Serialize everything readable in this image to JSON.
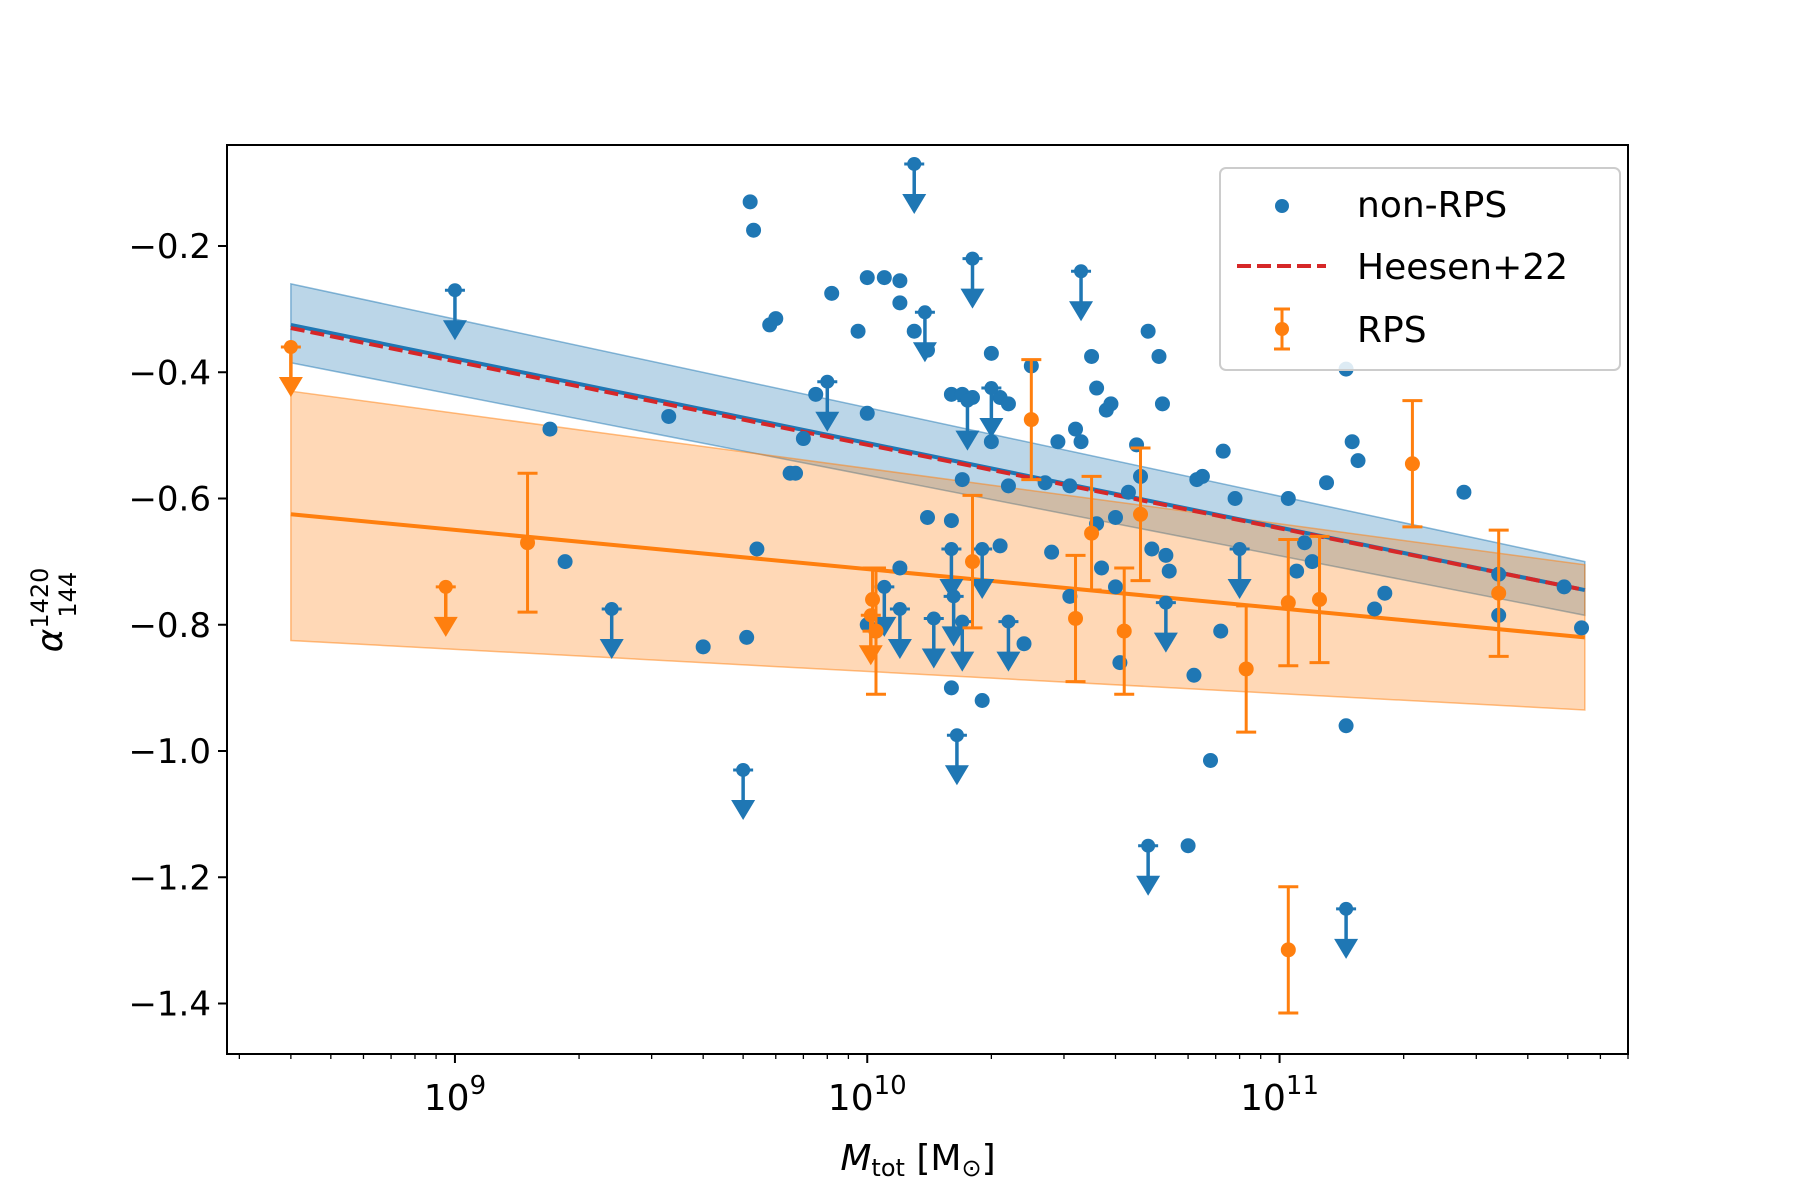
{
  "chart_data": {
    "type": "scatter",
    "xscale": "log",
    "xlim": [
      280000000,
      700000000000
    ],
    "ylim": [
      -1.48,
      -0.04
    ],
    "xlabel_main": "M",
    "xlabel_sub": "tot",
    "xlabel_unit": " [M",
    "xlabel_unit_sub": "⊙",
    "xlabel_close": "]",
    "ylabel_main": "α",
    "ylabel_sup": "1420",
    "ylabel_sub": "144",
    "ytick_labels": [
      {
        "v": -0.2,
        "label": "−0.2"
      },
      {
        "v": -0.4,
        "label": "−0.4"
      },
      {
        "v": -0.6,
        "label": "−0.6"
      },
      {
        "v": -0.8,
        "label": "−0.8"
      },
      {
        "v": -1.0,
        "label": "−1.0"
      },
      {
        "v": -1.2,
        "label": "−1.2"
      },
      {
        "v": -1.4,
        "label": "−1.4"
      }
    ],
    "xtick_labels": [
      {
        "v": 1000000000,
        "base": "10",
        "exp": "9"
      },
      {
        "v": 10000000000,
        "base": "10",
        "exp": "10"
      },
      {
        "v": 100000000000,
        "base": "10",
        "exp": "11"
      }
    ],
    "legend_position": "top-right",
    "legend": [
      {
        "label": "non-RPS",
        "kind": "marker",
        "color": "#1f77b4"
      },
      {
        "label": "Heesen+22",
        "kind": "dashed",
        "color": "#d62728"
      },
      {
        "label": "RPS",
        "kind": "errorbar",
        "color": "#ff7f0e"
      }
    ],
    "series": [
      {
        "name": "non-RPS",
        "color": "#1f77b4",
        "points": [
          [
            5200000000.0,
            -0.13
          ],
          [
            5300000000.0,
            -0.175
          ],
          [
            5800000000.0,
            -0.325
          ],
          [
            6000000000.0,
            -0.315
          ],
          [
            8200000000.0,
            -0.275
          ],
          [
            10000000000.0,
            -0.25
          ],
          [
            11000000000.0,
            -0.25
          ],
          [
            12000000000.0,
            -0.255
          ],
          [
            9500000000.0,
            -0.335
          ],
          [
            13000000000.0,
            -0.335
          ],
          [
            1700000000.0,
            -0.49
          ],
          [
            3300000000.0,
            -0.47
          ],
          [
            7000000000.0,
            -0.505
          ],
          [
            7500000000.0,
            -0.435
          ],
          [
            10000000000.0,
            -0.465
          ],
          [
            12000000000.0,
            -0.29
          ],
          [
            14000000000.0,
            -0.365
          ],
          [
            16000000000.0,
            -0.435
          ],
          [
            17000000000.0,
            -0.435
          ],
          [
            18000000000.0,
            -0.44
          ],
          [
            20000000000.0,
            -0.37
          ],
          [
            21000000000.0,
            -0.44
          ],
          [
            22000000000.0,
            -0.45
          ],
          [
            6500000000.0,
            -0.56
          ],
          [
            6700000000.0,
            -0.56
          ],
          [
            14000000000.0,
            -0.63
          ],
          [
            16000000000.0,
            -0.635
          ],
          [
            17000000000.0,
            -0.57
          ],
          [
            20000000000.0,
            -0.51
          ],
          [
            22000000000.0,
            -0.58
          ],
          [
            25000000000.0,
            -0.39
          ],
          [
            27000000000.0,
            -0.575
          ],
          [
            29000000000.0,
            -0.51
          ],
          [
            31000000000.0,
            -0.58
          ],
          [
            32000000000.0,
            -0.49
          ],
          [
            33000000000.0,
            -0.51
          ],
          [
            35000000000.0,
            -0.375
          ],
          [
            36000000000.0,
            -0.425
          ],
          [
            38000000000.0,
            -0.46
          ],
          [
            39000000000.0,
            -0.45
          ],
          [
            40000000000.0,
            -0.63
          ],
          [
            43000000000.0,
            -0.59
          ],
          [
            45000000000.0,
            -0.515
          ],
          [
            46000000000.0,
            -0.565
          ],
          [
            48000000000.0,
            -0.335
          ],
          [
            51000000000.0,
            -0.375
          ],
          [
            52000000000.0,
            -0.45
          ],
          [
            63000000000.0,
            -0.57
          ],
          [
            65000000000.0,
            -0.565
          ],
          [
            73000000000.0,
            -0.525
          ],
          [
            78000000000.0,
            -0.6
          ],
          [
            105000000000.0,
            -0.6
          ],
          [
            110000000000.0,
            -0.715
          ],
          [
            115000000000.0,
            -0.67
          ],
          [
            120000000000.0,
            -0.7
          ],
          [
            130000000000.0,
            -0.575
          ],
          [
            145000000000.0,
            -0.395
          ],
          [
            150000000000.0,
            -0.51
          ],
          [
            155000000000.0,
            -0.54
          ],
          [
            170000000000.0,
            -0.775
          ],
          [
            180000000000.0,
            -0.75
          ],
          [
            280000000000.0,
            -0.59
          ],
          [
            340000000000.0,
            -0.72
          ],
          [
            340000000000.0,
            -0.785
          ],
          [
            490000000000.0,
            -0.74
          ],
          [
            540000000000.0,
            -0.805
          ],
          [
            1850000000.0,
            -0.7
          ],
          [
            4000000000.0,
            -0.835
          ],
          [
            5100000000.0,
            -0.82
          ],
          [
            5400000000.0,
            -0.68
          ],
          [
            10000000000.0,
            -0.8
          ],
          [
            10500000000.0,
            -0.81
          ],
          [
            12000000000.0,
            -0.71
          ],
          [
            16000000000.0,
            -0.9
          ],
          [
            19000000000.0,
            -0.92
          ],
          [
            21000000000.0,
            -0.675
          ],
          [
            24000000000.0,
            -0.83
          ],
          [
            28000000000.0,
            -0.685
          ],
          [
            31000000000.0,
            -0.755
          ],
          [
            36000000000.0,
            -0.64
          ],
          [
            37000000000.0,
            -0.71
          ],
          [
            40000000000.0,
            -0.74
          ],
          [
            41000000000.0,
            -0.86
          ],
          [
            49000000000.0,
            -0.68
          ],
          [
            53000000000.0,
            -0.69
          ],
          [
            54000000000.0,
            -0.715
          ],
          [
            62000000000.0,
            -0.88
          ],
          [
            68000000000.0,
            -1.015
          ],
          [
            72000000000.0,
            -0.81
          ],
          [
            60000000000.0,
            -1.15
          ],
          [
            145000000000.0,
            -0.96
          ]
        ]
      },
      {
        "name": "non-RPS upper limits",
        "color": "#1f77b4",
        "points": [
          [
            1000000000.0,
            -0.27
          ],
          [
            2400000000.0,
            -0.775
          ],
          [
            5000000000.0,
            -1.03
          ],
          [
            8000000000.0,
            -0.415
          ],
          [
            11000000000.0,
            -0.74
          ],
          [
            12000000000.0,
            -0.775
          ],
          [
            13000000000.0,
            -0.07
          ],
          [
            13800000000.0,
            -0.305
          ],
          [
            14500000000.0,
            -0.79
          ],
          [
            16000000000.0,
            -0.68
          ],
          [
            16200000000.0,
            -0.755
          ],
          [
            16500000000.0,
            -0.975
          ],
          [
            17000000000.0,
            -0.795
          ],
          [
            18000000000.0,
            -0.22
          ],
          [
            17500000000.0,
            -0.445
          ],
          [
            19000000000.0,
            -0.68
          ],
          [
            20000000000.0,
            -0.425
          ],
          [
            22000000000.0,
            -0.795
          ],
          [
            33000000000.0,
            -0.24
          ],
          [
            48000000000.0,
            -1.15
          ],
          [
            53000000000.0,
            -0.765
          ],
          [
            80000000000.0,
            -0.68
          ],
          [
            145000000000.0,
            -1.25
          ]
        ]
      },
      {
        "name": "RPS",
        "color": "#ff7f0e",
        "points": [
          {
            "x": 1500000000.0,
            "y": -0.67,
            "err": 0.11
          },
          {
            "x": 10300000000.0,
            "y": -0.76,
            "err": 0.05
          },
          {
            "x": 10500000000.0,
            "y": -0.81,
            "err": 0.1
          },
          {
            "x": 18000000000.0,
            "y": -0.7,
            "err": 0.105
          },
          {
            "x": 25000000000.0,
            "y": -0.475,
            "err": 0.095
          },
          {
            "x": 32000000000.0,
            "y": -0.79,
            "err": 0.1
          },
          {
            "x": 35000000000.0,
            "y": -0.655,
            "err": 0.09
          },
          {
            "x": 42000000000.0,
            "y": -0.81,
            "err": 0.1
          },
          {
            "x": 46000000000.0,
            "y": -0.625,
            "err": 0.105
          },
          {
            "x": 83000000000.0,
            "y": -0.87,
            "err": 0.1
          },
          {
            "x": 105000000000.0,
            "y": -0.765,
            "err": 0.1
          },
          {
            "x": 105000000000.0,
            "y": -1.315,
            "err": 0.1
          },
          {
            "x": 125000000000.0,
            "y": -0.76,
            "err": 0.1
          },
          {
            "x": 210000000000.0,
            "y": -0.545,
            "err": 0.1
          },
          {
            "x": 340000000000.0,
            "y": -0.75,
            "err": 0.1
          }
        ]
      },
      {
        "name": "RPS upper limits",
        "color": "#ff7f0e",
        "points": [
          [
            400000000.0,
            -0.36
          ],
          [
            950000000.0,
            -0.74
          ],
          [
            10200000000.0,
            -0.785
          ]
        ]
      }
    ],
    "fits": [
      {
        "name": "non-RPS fit",
        "color": "#1f77b4",
        "x": [
          400000000.0,
          550000000000.0
        ],
        "y": [
          -0.325,
          -0.745
        ],
        "band_lower": [
          -0.385,
          -0.785
        ],
        "band_upper": [
          -0.26,
          -0.7
        ]
      },
      {
        "name": "Heesen+22",
        "color": "#d62728",
        "x": [
          400000000.0,
          550000000000.0
        ],
        "y": [
          -0.33,
          -0.745
        ]
      },
      {
        "name": "RPS fit",
        "color": "#ff7f0e",
        "x": [
          400000000.0,
          550000000000.0
        ],
        "y": [
          -0.625,
          -0.82
        ],
        "band_lower": [
          -0.825,
          -0.935
        ],
        "band_upper": [
          -0.43,
          -0.705
        ]
      }
    ]
  }
}
